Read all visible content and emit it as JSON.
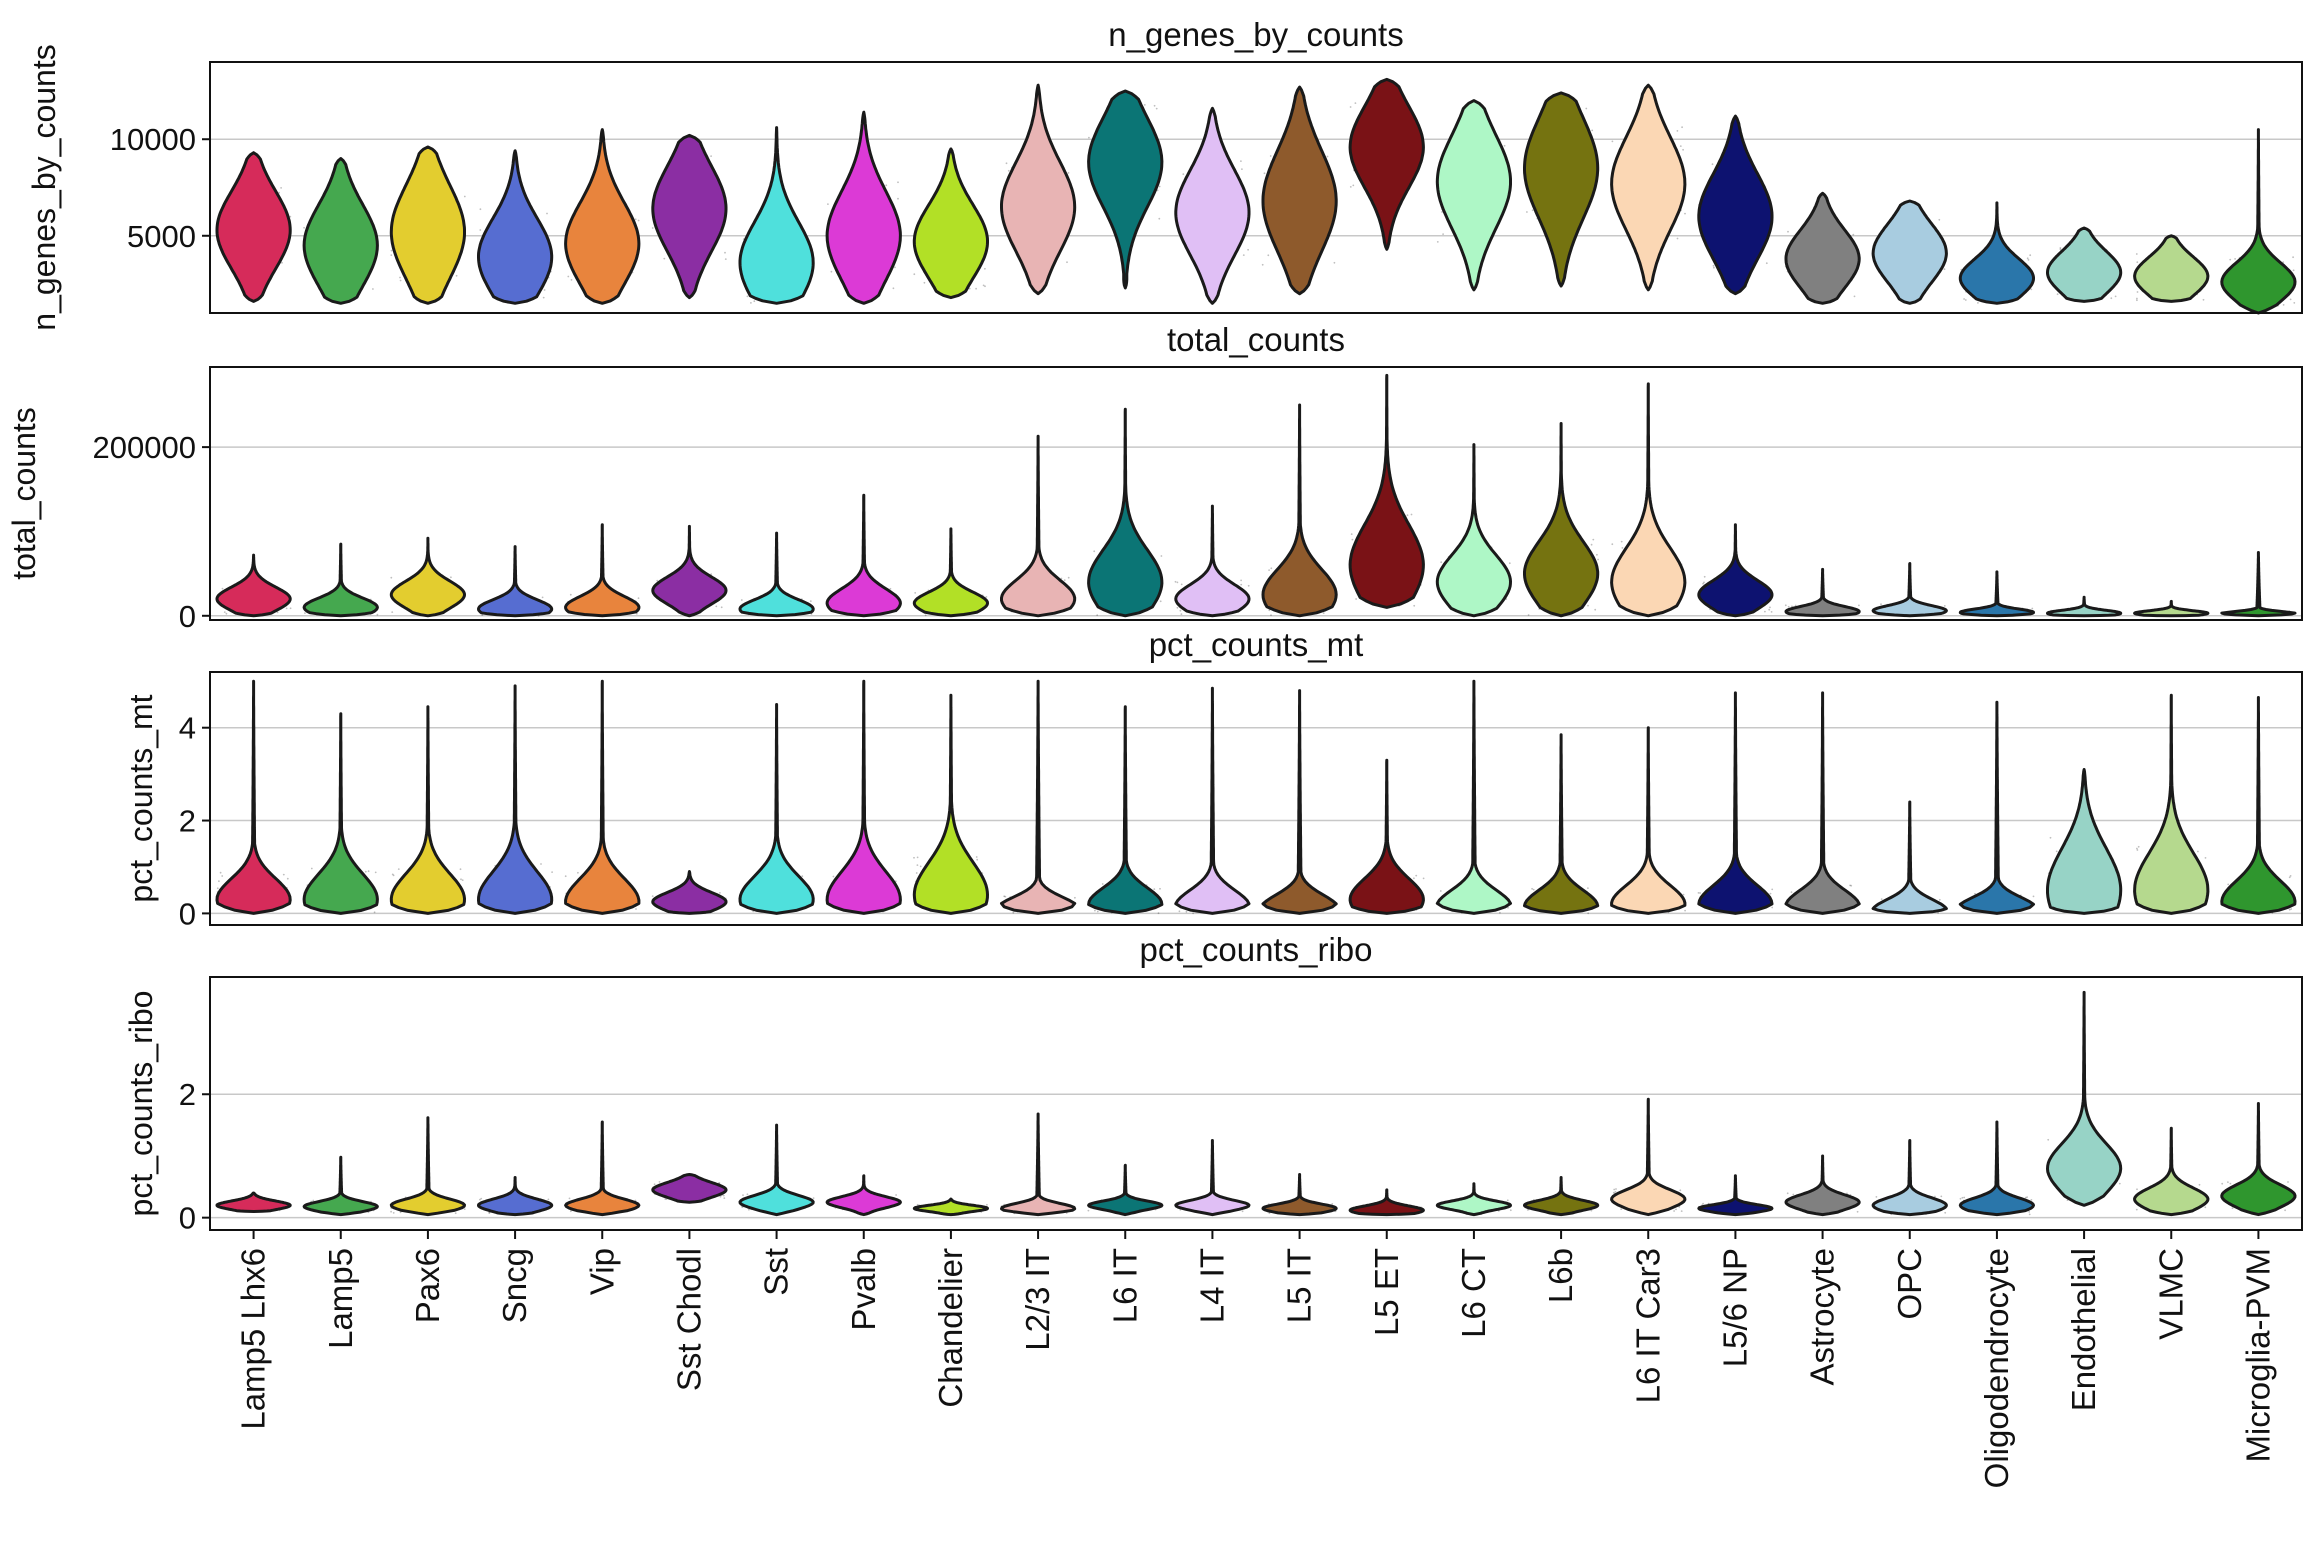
{
  "chart_data": {
    "type": "violin",
    "categories": [
      "Lamp5 Lhx6",
      "Lamp5",
      "Pax6",
      "Sncg",
      "Vip",
      "Sst Chodl",
      "Sst",
      "Pvalb",
      "Chandelier",
      "L2/3 IT",
      "L6 IT",
      "L4 IT",
      "L5 IT",
      "L5 ET",
      "L6 CT",
      "L6b",
      "L6 IT Car3",
      "L5/6 NP",
      "Astrocyte",
      "OPC",
      "Oligodendrocyte",
      "Endothelial",
      "VLMC",
      "Microglia-PVM"
    ],
    "colors": [
      "#d62b5a",
      "#45a84f",
      "#e3cd2f",
      "#566dd1",
      "#e8843d",
      "#8b2ea3",
      "#4fe0dc",
      "#dc3ad6",
      "#b2e026",
      "#e8b4b4",
      "#0b7575",
      "#e0bff5",
      "#8e5a2c",
      "#7a1216",
      "#aef7c6",
      "#757310",
      "#fbd7b4",
      "#0d1270",
      "#808080",
      "#a8cce0",
      "#2a76aa",
      "#97d3c6",
      "#b5d98e",
      "#2f962e"
    ],
    "panels": [
      {
        "title": "n_genes_by_counts",
        "ylabel": "n_genes_by_counts",
        "ylim": [
          1000,
          14000
        ],
        "yticks": [
          5000,
          10000
        ],
        "ytick_labels": [
          "5000",
          "10000"
        ],
        "grid": true,
        "series": [
          {
            "name": "Lamp5 Lhx6",
            "min": 1600,
            "max": 9300,
            "mode": 5300,
            "spread": 2000
          },
          {
            "name": "Lamp5",
            "min": 1500,
            "max": 9000,
            "mode": 4500,
            "spread": 2100
          },
          {
            "name": "Pax6",
            "min": 1500,
            "max": 9600,
            "mode": 5200,
            "spread": 2400
          },
          {
            "name": "Sncg",
            "min": 1500,
            "max": 9400,
            "mode": 3900,
            "spread": 2000
          },
          {
            "name": "Vip",
            "min": 1500,
            "max": 10500,
            "mode": 4600,
            "spread": 2100
          },
          {
            "name": "Sst Chodl",
            "min": 1800,
            "max": 10200,
            "mode": 6400,
            "spread": 2200
          },
          {
            "name": "Sst",
            "min": 1500,
            "max": 10600,
            "mode": 3600,
            "spread": 2100
          },
          {
            "name": "Pvalb",
            "min": 1500,
            "max": 11400,
            "mode": 5000,
            "spread": 2300
          },
          {
            "name": "Chandelier",
            "min": 1800,
            "max": 9500,
            "mode": 4700,
            "spread": 1900
          },
          {
            "name": "L2/3 IT",
            "min": 2000,
            "max": 12800,
            "mode": 6500,
            "spread": 2300
          },
          {
            "name": "L6 IT",
            "min": 2300,
            "max": 12500,
            "mode": 8800,
            "spread": 2300
          },
          {
            "name": "L4 IT",
            "min": 1500,
            "max": 11600,
            "mode": 6200,
            "spread": 2200
          },
          {
            "name": "L5 IT",
            "min": 2000,
            "max": 12700,
            "mode": 6800,
            "spread": 2600
          },
          {
            "name": "L5 ET",
            "min": 4300,
            "max": 13100,
            "mode": 9600,
            "spread": 2100
          },
          {
            "name": "L6 CT",
            "min": 2200,
            "max": 12000,
            "mode": 7800,
            "spread": 2400
          },
          {
            "name": "L6b",
            "min": 2400,
            "max": 12400,
            "mode": 8500,
            "spread": 2600
          },
          {
            "name": "L6 IT Car3",
            "min": 2200,
            "max": 12800,
            "mode": 7700,
            "spread": 2400
          },
          {
            "name": "L5/6 NP",
            "min": 2000,
            "max": 11200,
            "mode": 6000,
            "spread": 2200
          },
          {
            "name": "Astrocyte",
            "min": 1500,
            "max": 7200,
            "mode": 3800,
            "spread": 1500
          },
          {
            "name": "OPC",
            "min": 1500,
            "max": 6800,
            "mode": 4100,
            "spread": 1500
          },
          {
            "name": "Oligodendrocyte",
            "min": 1500,
            "max": 6700,
            "mode": 2800,
            "spread": 1000
          },
          {
            "name": "Endothelial",
            "min": 1600,
            "max": 5400,
            "mode": 3100,
            "spread": 1100
          },
          {
            "name": "VLMC",
            "min": 1600,
            "max": 5000,
            "mode": 2900,
            "spread": 1000
          },
          {
            "name": "Microglia-PVM",
            "min": 1000,
            "max": 10500,
            "mode": 2600,
            "spread": 1000
          }
        ]
      },
      {
        "title": "total_counts",
        "ylabel": "total_counts",
        "ylim": [
          -5000,
          295000
        ],
        "yticks": [
          0,
          200000
        ],
        "ytick_labels": [
          "0",
          "200000"
        ],
        "grid": true,
        "series": [
          {
            "name": "Lamp5 Lhx6",
            "min": 0,
            "max": 72000,
            "mode": 20000,
            "spread": 14000
          },
          {
            "name": "Lamp5",
            "min": 0,
            "max": 85000,
            "mode": 10000,
            "spread": 11000
          },
          {
            "name": "Pax6",
            "min": 0,
            "max": 92000,
            "mode": 25000,
            "spread": 16000
          },
          {
            "name": "Sncg",
            "min": 0,
            "max": 82000,
            "mode": 8000,
            "spread": 11000
          },
          {
            "name": "Vip",
            "min": 0,
            "max": 108000,
            "mode": 10000,
            "spread": 13000
          },
          {
            "name": "Sst Chodl",
            "min": 0,
            "max": 106000,
            "mode": 30000,
            "spread": 16000
          },
          {
            "name": "Sst",
            "min": 0,
            "max": 98000,
            "mode": 8000,
            "spread": 11000
          },
          {
            "name": "Pvalb",
            "min": 0,
            "max": 143000,
            "mode": 15000,
            "spread": 17000
          },
          {
            "name": "Chandelier",
            "min": 0,
            "max": 103000,
            "mode": 15000,
            "spread": 13000
          },
          {
            "name": "L2/3 IT",
            "min": 0,
            "max": 213000,
            "mode": 20000,
            "spread": 22000
          },
          {
            "name": "L6 IT",
            "min": 0,
            "max": 245000,
            "mode": 40000,
            "spread": 38000
          },
          {
            "name": "L4 IT",
            "min": 0,
            "max": 130000,
            "mode": 20000,
            "spread": 17000
          },
          {
            "name": "L5 IT",
            "min": 0,
            "max": 250000,
            "mode": 25000,
            "spread": 30000
          },
          {
            "name": "L5 ET",
            "min": 10000,
            "max": 285000,
            "mode": 60000,
            "spread": 48000
          },
          {
            "name": "L6 CT",
            "min": 0,
            "max": 203000,
            "mode": 40000,
            "spread": 32000
          },
          {
            "name": "L6b",
            "min": 0,
            "max": 228000,
            "mode": 50000,
            "spread": 38000
          },
          {
            "name": "L6 IT Car3",
            "min": 0,
            "max": 275000,
            "mode": 40000,
            "spread": 40000
          },
          {
            "name": "L5/6 NP",
            "min": 0,
            "max": 108000,
            "mode": 25000,
            "spread": 17000
          },
          {
            "name": "Astrocyte",
            "min": 0,
            "max": 55000,
            "mode": 5000,
            "spread": 6000
          },
          {
            "name": "OPC",
            "min": 0,
            "max": 62000,
            "mode": 6000,
            "spread": 6000
          },
          {
            "name": "Oligodendrocyte",
            "min": 0,
            "max": 52000,
            "mode": 4000,
            "spread": 4000
          },
          {
            "name": "Endothelial",
            "min": 0,
            "max": 22000,
            "mode": 3000,
            "spread": 3500
          },
          {
            "name": "VLMC",
            "min": 0,
            "max": 17000,
            "mode": 3000,
            "spread": 3000
          },
          {
            "name": "Microglia-PVM",
            "min": 0,
            "max": 75000,
            "mode": 2000,
            "spread": 3000
          }
        ]
      },
      {
        "title": "pct_counts_mt",
        "ylabel": "pct_counts_mt",
        "ylim": [
          -0.25,
          5.2
        ],
        "yticks": [
          0,
          2,
          4
        ],
        "ytick_labels": [
          "0",
          "2",
          "4"
        ],
        "grid": true,
        "series": [
          {
            "name": "Lamp5 Lhx6",
            "min": 0,
            "max": 5.0,
            "mode": 0.3,
            "spread": 0.45
          },
          {
            "name": "Lamp5",
            "min": 0,
            "max": 4.3,
            "mode": 0.3,
            "spread": 0.55
          },
          {
            "name": "Pax6",
            "min": 0,
            "max": 4.45,
            "mode": 0.3,
            "spread": 0.55
          },
          {
            "name": "Sncg",
            "min": 0,
            "max": 4.9,
            "mode": 0.3,
            "spread": 0.6
          },
          {
            "name": "Vip",
            "min": 0,
            "max": 5.0,
            "mode": 0.25,
            "spread": 0.5
          },
          {
            "name": "Sst Chodl",
            "min": 0,
            "max": 0.9,
            "mode": 0.25,
            "spread": 0.2
          },
          {
            "name": "Sst",
            "min": 0,
            "max": 4.5,
            "mode": 0.3,
            "spread": 0.5
          },
          {
            "name": "Pvalb",
            "min": 0,
            "max": 5.0,
            "mode": 0.3,
            "spread": 0.6
          },
          {
            "name": "Chandelier",
            "min": 0,
            "max": 4.7,
            "mode": 0.4,
            "spread": 0.7
          },
          {
            "name": "L2/3 IT",
            "min": 0,
            "max": 5.0,
            "mode": 0.1,
            "spread": 0.25
          },
          {
            "name": "L6 IT",
            "min": 0,
            "max": 4.45,
            "mode": 0.2,
            "spread": 0.35
          },
          {
            "name": "L4 IT",
            "min": 0,
            "max": 4.85,
            "mode": 0.15,
            "spread": 0.35
          },
          {
            "name": "L5 IT",
            "min": 0,
            "max": 4.8,
            "mode": 0.1,
            "spread": 0.3
          },
          {
            "name": "L5 ET",
            "min": 0,
            "max": 3.3,
            "mode": 0.3,
            "spread": 0.45
          },
          {
            "name": "L6 CT",
            "min": 0,
            "max": 5.0,
            "mode": 0.15,
            "spread": 0.35
          },
          {
            "name": "L6b",
            "min": 0,
            "max": 3.85,
            "mode": 0.15,
            "spread": 0.35
          },
          {
            "name": "L6 IT Car3",
            "min": 0,
            "max": 4.0,
            "mode": 0.2,
            "spread": 0.4
          },
          {
            "name": "L5/6 NP",
            "min": 0,
            "max": 4.75,
            "mode": 0.2,
            "spread": 0.4
          },
          {
            "name": "Astrocyte",
            "min": 0,
            "max": 4.75,
            "mode": 0.15,
            "spread": 0.35
          },
          {
            "name": "OPC",
            "min": 0,
            "max": 2.4,
            "mode": 0.05,
            "spread": 0.25
          },
          {
            "name": "Oligodendrocyte",
            "min": 0,
            "max": 4.55,
            "mode": 0.1,
            "spread": 0.25
          },
          {
            "name": "Endothelial",
            "min": 0,
            "max": 3.1,
            "mode": 0.5,
            "spread": 0.9
          },
          {
            "name": "VLMC",
            "min": 0,
            "max": 4.7,
            "mode": 0.5,
            "spread": 0.8
          },
          {
            "name": "Microglia-PVM",
            "min": 0,
            "max": 4.65,
            "mode": 0.25,
            "spread": 0.45
          }
        ]
      },
      {
        "title": "pct_counts_ribo",
        "ylabel": "pct_counts_ribo",
        "ylim": [
          -0.2,
          3.9
        ],
        "yticks": [
          0,
          2
        ],
        "ytick_labels": [
          "0",
          "2"
        ],
        "grid": true,
        "series": [
          {
            "name": "Lamp5 Lhx6",
            "min": 0.1,
            "max": 0.4,
            "mode": 0.2,
            "spread": 0.07
          },
          {
            "name": "Lamp5",
            "min": 0.05,
            "max": 0.98,
            "mode": 0.18,
            "spread": 0.08
          },
          {
            "name": "Pax6",
            "min": 0.05,
            "max": 1.62,
            "mode": 0.2,
            "spread": 0.1
          },
          {
            "name": "Sncg",
            "min": 0.05,
            "max": 0.65,
            "mode": 0.2,
            "spread": 0.1
          },
          {
            "name": "Vip",
            "min": 0.05,
            "max": 1.55,
            "mode": 0.2,
            "spread": 0.1
          },
          {
            "name": "Sst Chodl",
            "min": 0.25,
            "max": 0.7,
            "mode": 0.45,
            "spread": 0.12
          },
          {
            "name": "Sst",
            "min": 0.05,
            "max": 1.5,
            "mode": 0.25,
            "spread": 0.11
          },
          {
            "name": "Pvalb",
            "min": 0.05,
            "max": 0.68,
            "mode": 0.25,
            "spread": 0.09
          },
          {
            "name": "Chandelier",
            "min": 0.05,
            "max": 0.3,
            "mode": 0.15,
            "spread": 0.05
          },
          {
            "name": "L2/3 IT",
            "min": 0.05,
            "max": 1.68,
            "mode": 0.15,
            "spread": 0.08
          },
          {
            "name": "L6 IT",
            "min": 0.05,
            "max": 0.85,
            "mode": 0.2,
            "spread": 0.07
          },
          {
            "name": "L4 IT",
            "min": 0.05,
            "max": 1.25,
            "mode": 0.2,
            "spread": 0.08
          },
          {
            "name": "L5 IT",
            "min": 0.05,
            "max": 0.7,
            "mode": 0.15,
            "spread": 0.07
          },
          {
            "name": "L5 ET",
            "min": 0.05,
            "max": 0.45,
            "mode": 0.12,
            "spread": 0.07
          },
          {
            "name": "L6 CT",
            "min": 0.05,
            "max": 0.55,
            "mode": 0.2,
            "spread": 0.07
          },
          {
            "name": "L6b",
            "min": 0.05,
            "max": 0.65,
            "mode": 0.2,
            "spread": 0.08
          },
          {
            "name": "L6 IT Car3",
            "min": 0.05,
            "max": 1.92,
            "mode": 0.3,
            "spread": 0.15
          },
          {
            "name": "L5/6 NP",
            "min": 0.05,
            "max": 0.68,
            "mode": 0.15,
            "spread": 0.06
          },
          {
            "name": "Astrocyte",
            "min": 0.05,
            "max": 1.0,
            "mode": 0.25,
            "spread": 0.12
          },
          {
            "name": "OPC",
            "min": 0.05,
            "max": 1.25,
            "mode": 0.2,
            "spread": 0.12
          },
          {
            "name": "Oligodendrocyte",
            "min": 0.05,
            "max": 1.55,
            "mode": 0.2,
            "spread": 0.12
          },
          {
            "name": "Endothelial",
            "min": 0.2,
            "max": 3.65,
            "mode": 0.8,
            "spread": 0.4
          },
          {
            "name": "VLMC",
            "min": 0.05,
            "max": 1.45,
            "mode": 0.3,
            "spread": 0.18
          },
          {
            "name": "Microglia-PVM",
            "min": 0.05,
            "max": 1.85,
            "mode": 0.35,
            "spread": 0.18
          }
        ]
      }
    ]
  }
}
